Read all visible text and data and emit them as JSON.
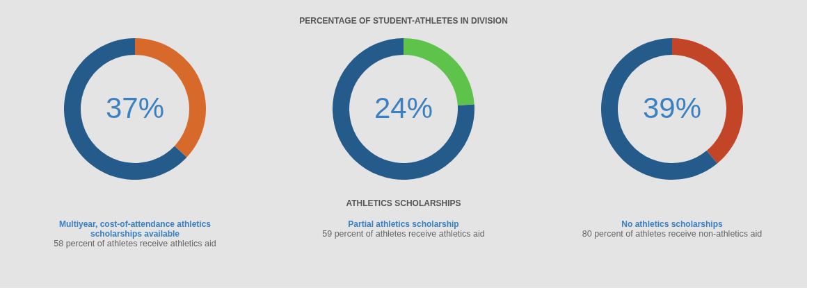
{
  "chart_data": [
    {
      "type": "donut",
      "categories": [
        null,
        null
      ],
      "values": [
        37,
        63
      ],
      "colors": [
        "#d7692b",
        "#245b8a"
      ],
      "value_labels": [
        "37%",
        null
      ],
      "annotations": [
        "Multiyear, cost-of-attendance athletics scholarships available",
        "58 percent of athletes receive athletics aid"
      ]
    },
    {
      "type": "donut",
      "title": "PERCENTAGE OF STUDENT-ATHLETES IN DIVISION",
      "subtitle": "ATHLETICS SCHOLARSHIPS",
      "categories": [
        null,
        null
      ],
      "values": [
        24,
        76
      ],
      "colors": [
        "#5dc34a",
        "#245b8a"
      ],
      "value_labels": [
        "24%",
        null
      ],
      "annotations": [
        "Partial athletics scholarship",
        "59 percent of athletes receive athletics aid"
      ]
    },
    {
      "type": "donut",
      "categories": [
        null,
        null
      ],
      "values": [
        39,
        61
      ],
      "colors": [
        "#c34527",
        "#245b8a"
      ],
      "value_labels": [
        "39%",
        null
      ],
      "annotations": [
        "No athletics scholarships",
        "80 percent of athletes receive non-athletics aid"
      ]
    }
  ]
}
